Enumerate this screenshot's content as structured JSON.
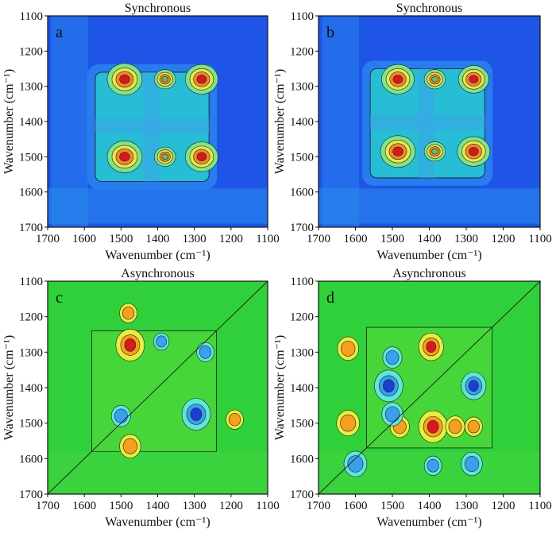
{
  "chart_data": [
    {
      "type": "heatmap",
      "panel_label": "a",
      "title": "Synchronous",
      "xlabel": "Wavenumber (cm⁻¹)",
      "ylabel": "Wavenumber (cm⁻¹)",
      "x_ticks": [
        "1700",
        "1600",
        "1500",
        "1400",
        "1300",
        "1200",
        "1100"
      ],
      "y_ticks": [
        "1100",
        "1200",
        "1300",
        "1400",
        "1500",
        "1600",
        "1700"
      ],
      "xlim": [
        1700,
        1100
      ],
      "ylim": [
        1100,
        1700
      ],
      "background_color": "#1e55e6",
      "square_box": [
        1260,
        1570
      ],
      "peaks": [
        {
          "x": 1490,
          "y": 1280,
          "value": 1.0,
          "sign": "positive",
          "color": "#d7191c"
        },
        {
          "x": 1280,
          "y": 1280,
          "value": 0.9,
          "sign": "positive",
          "color": "#d7191c"
        },
        {
          "x": 1490,
          "y": 1500,
          "value": 1.0,
          "sign": "positive",
          "color": "#d7191c"
        },
        {
          "x": 1280,
          "y": 1500,
          "value": 0.9,
          "sign": "positive",
          "color": "#d7191c"
        },
        {
          "x": 1380,
          "y": 1280,
          "value": 0.4,
          "sign": "positive",
          "color": "#66bd63"
        },
        {
          "x": 1380,
          "y": 1500,
          "value": 0.4,
          "sign": "positive",
          "color": "#66bd63"
        }
      ]
    },
    {
      "type": "heatmap",
      "panel_label": "b",
      "title": "Synchronous",
      "xlabel": "Wavenumber (cm⁻¹)",
      "ylabel": "Wavenumber (cm⁻¹)",
      "x_ticks": [
        "1700",
        "1600",
        "1500",
        "1400",
        "1300",
        "1200",
        "1100"
      ],
      "y_ticks": [
        "1100",
        "1200",
        "1300",
        "1400",
        "1500",
        "1600",
        "1700"
      ],
      "xlim": [
        1700,
        1100
      ],
      "ylim": [
        1100,
        1700
      ],
      "background_color": "#1e55e6",
      "square_box": [
        1250,
        1560
      ],
      "peaks": [
        {
          "x": 1485,
          "y": 1280,
          "value": 0.9,
          "sign": "positive",
          "color": "#d7191c"
        },
        {
          "x": 1280,
          "y": 1280,
          "value": 0.8,
          "sign": "positive",
          "color": "#d7191c"
        },
        {
          "x": 1485,
          "y": 1485,
          "value": 1.0,
          "sign": "positive",
          "color": "#d7191c"
        },
        {
          "x": 1280,
          "y": 1485,
          "value": 0.9,
          "sign": "positive",
          "color": "#d7191c"
        },
        {
          "x": 1385,
          "y": 1280,
          "value": 0.4,
          "sign": "positive",
          "color": "#66bd63"
        },
        {
          "x": 1385,
          "y": 1485,
          "value": 0.4,
          "sign": "positive",
          "color": "#66bd63"
        }
      ]
    },
    {
      "type": "heatmap",
      "panel_label": "c",
      "title": "Asynchronous",
      "xlabel": "Wavenumber (cm⁻¹)",
      "ylabel": "Wavenumber (cm⁻¹)",
      "x_ticks": [
        "1700",
        "1600",
        "1500",
        "1400",
        "1300",
        "1200",
        "1100"
      ],
      "y_ticks": [
        "1100",
        "1200",
        "1300",
        "1400",
        "1500",
        "1600",
        "1700"
      ],
      "xlim": [
        1700,
        1100
      ],
      "ylim": [
        1100,
        1700
      ],
      "background_color": "#2fd03a",
      "square_box": [
        1240,
        1580
      ],
      "peaks": [
        {
          "x": 1475,
          "y": 1280,
          "value": 1.0,
          "sign": "positive",
          "color": "#d7191c"
        },
        {
          "x": 1475,
          "y": 1565,
          "value": 0.6,
          "sign": "positive",
          "color": "#fdae61"
        },
        {
          "x": 1480,
          "y": 1190,
          "value": 0.4,
          "sign": "positive",
          "color": "#fee08b"
        },
        {
          "x": 1190,
          "y": 1490,
          "value": 0.4,
          "sign": "positive",
          "color": "#fee08b"
        },
        {
          "x": 1295,
          "y": 1475,
          "value": -1.0,
          "sign": "negative",
          "color": "#2166ac"
        },
        {
          "x": 1500,
          "y": 1480,
          "value": -0.5,
          "sign": "negative",
          "color": "#67a9cf"
        },
        {
          "x": 1270,
          "y": 1300,
          "value": -0.4,
          "sign": "negative",
          "color": "#67a9cf"
        },
        {
          "x": 1390,
          "y": 1270,
          "value": -0.3,
          "sign": "negative",
          "color": "#67a9cf"
        }
      ]
    },
    {
      "type": "heatmap",
      "panel_label": "d",
      "title": "Asynchronous",
      "xlabel": "Wavenumber (cm⁻¹)",
      "ylabel": "Wavenumber (cm⁻¹)",
      "x_ticks": [
        "1700",
        "1600",
        "1500",
        "1400",
        "1300",
        "1200",
        "1100"
      ],
      "y_ticks": [
        "1100",
        "1200",
        "1300",
        "1400",
        "1500",
        "1600",
        "1700"
      ],
      "xlim": [
        1700,
        1100
      ],
      "ylim": [
        1100,
        1700
      ],
      "background_color": "#2fd03a",
      "square_box": [
        1230,
        1570
      ],
      "peaks": [
        {
          "x": 1390,
          "y": 1510,
          "value": 1.0,
          "sign": "positive",
          "color": "#d7191c"
        },
        {
          "x": 1395,
          "y": 1285,
          "value": 0.8,
          "sign": "positive",
          "color": "#d7191c"
        },
        {
          "x": 1620,
          "y": 1290,
          "value": 0.6,
          "sign": "positive",
          "color": "#fdae61"
        },
        {
          "x": 1620,
          "y": 1500,
          "value": 0.7,
          "sign": "positive",
          "color": "#fdae61"
        },
        {
          "x": 1480,
          "y": 1510,
          "value": 0.5,
          "sign": "positive",
          "color": "#fdae61"
        },
        {
          "x": 1330,
          "y": 1510,
          "value": 0.5,
          "sign": "positive",
          "color": "#fdae61"
        },
        {
          "x": 1280,
          "y": 1510,
          "value": 0.4,
          "sign": "positive",
          "color": "#fee08b"
        },
        {
          "x": 1510,
          "y": 1395,
          "value": -1.0,
          "sign": "negative",
          "color": "#2166ac"
        },
        {
          "x": 1280,
          "y": 1395,
          "value": -0.8,
          "sign": "negative",
          "color": "#2166ac"
        },
        {
          "x": 1500,
          "y": 1475,
          "value": -0.6,
          "sign": "negative",
          "color": "#67a9cf"
        },
        {
          "x": 1500,
          "y": 1315,
          "value": -0.5,
          "sign": "negative",
          "color": "#67a9cf"
        },
        {
          "x": 1600,
          "y": 1615,
          "value": -0.7,
          "sign": "negative",
          "color": "#67a9cf"
        },
        {
          "x": 1285,
          "y": 1615,
          "value": -0.6,
          "sign": "negative",
          "color": "#67a9cf"
        },
        {
          "x": 1390,
          "y": 1620,
          "value": -0.4,
          "sign": "negative",
          "color": "#67a9cf"
        }
      ]
    }
  ]
}
